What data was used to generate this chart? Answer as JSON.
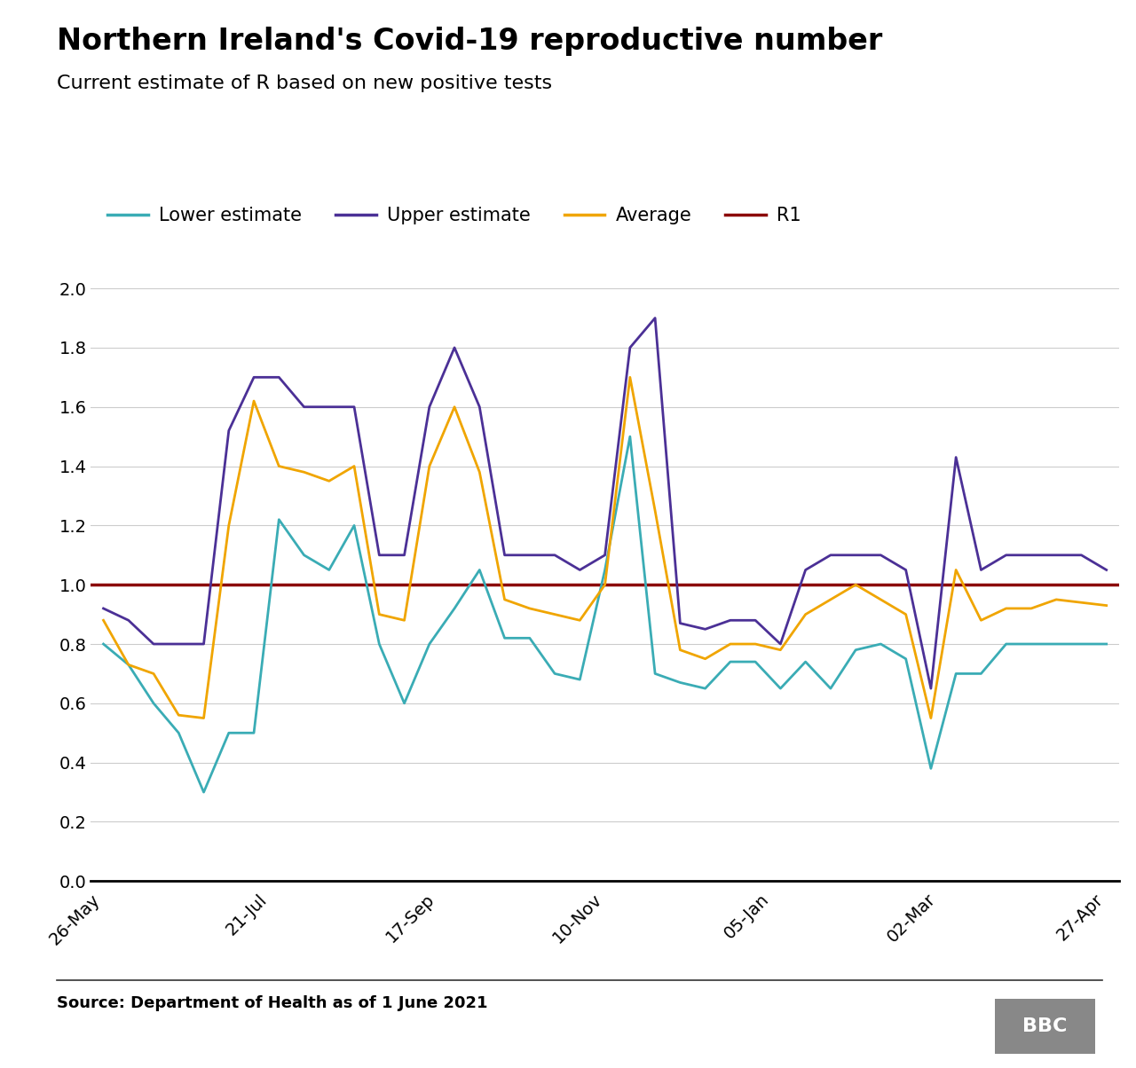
{
  "title": "Northern Ireland's Covid-19 reproductive number",
  "subtitle": "Current estimate of R based on new positive tests",
  "source": "Source: Department of Health as of 1 June 2021",
  "x_labels": [
    "26-May",
    "21-Jul",
    "17-Sep",
    "10-Nov",
    "05-Jan",
    "02-Mar",
    "27-Apr"
  ],
  "lower_color": "#3aacb5",
  "upper_color": "#4b3096",
  "average_color": "#f0a500",
  "r1_color": "#8b0000",
  "background_color": "#ffffff",
  "lower": [
    0.8,
    0.73,
    0.6,
    0.5,
    0.3,
    0.5,
    0.5,
    1.22,
    1.1,
    1.05,
    1.2,
    0.8,
    0.6,
    0.8,
    0.92,
    1.05,
    0.82,
    0.82,
    0.7,
    0.68,
    1.05,
    1.5,
    0.7,
    0.67,
    0.65,
    0.74,
    0.74,
    0.65,
    0.74,
    0.65,
    0.78,
    0.8,
    0.75,
    0.38,
    0.7,
    0.7,
    0.8,
    0.8,
    0.8,
    0.8,
    0.8
  ],
  "upper": [
    0.92,
    0.88,
    0.8,
    0.8,
    0.8,
    1.52,
    1.7,
    1.7,
    1.6,
    1.6,
    1.6,
    1.1,
    1.1,
    1.6,
    1.8,
    1.6,
    1.1,
    1.1,
    1.1,
    1.05,
    1.1,
    1.8,
    1.9,
    0.87,
    0.85,
    0.88,
    0.88,
    0.8,
    1.05,
    1.1,
    1.1,
    1.1,
    1.05,
    0.65,
    1.43,
    1.05,
    1.1,
    1.1,
    1.1,
    1.1,
    1.05
  ],
  "average": [
    0.88,
    0.73,
    0.7,
    0.56,
    0.55,
    1.2,
    1.62,
    1.4,
    1.38,
    1.35,
    1.4,
    0.9,
    0.88,
    1.4,
    1.6,
    1.38,
    0.95,
    0.92,
    0.9,
    0.88,
    1.0,
    1.7,
    1.25,
    0.78,
    0.75,
    0.8,
    0.8,
    0.78,
    0.9,
    0.95,
    1.0,
    0.95,
    0.9,
    0.55,
    1.05,
    0.88,
    0.92,
    0.92,
    0.95,
    0.94,
    0.93
  ],
  "n_points": 41,
  "tick_positions": [
    0,
    6.67,
    13.33,
    20.0,
    26.67,
    33.33,
    40.0
  ],
  "ylim": [
    0.0,
    2.0
  ],
  "yticks": [
    0.0,
    0.2,
    0.4,
    0.6,
    0.8,
    1.0,
    1.2,
    1.4,
    1.6,
    1.8,
    2.0
  ]
}
